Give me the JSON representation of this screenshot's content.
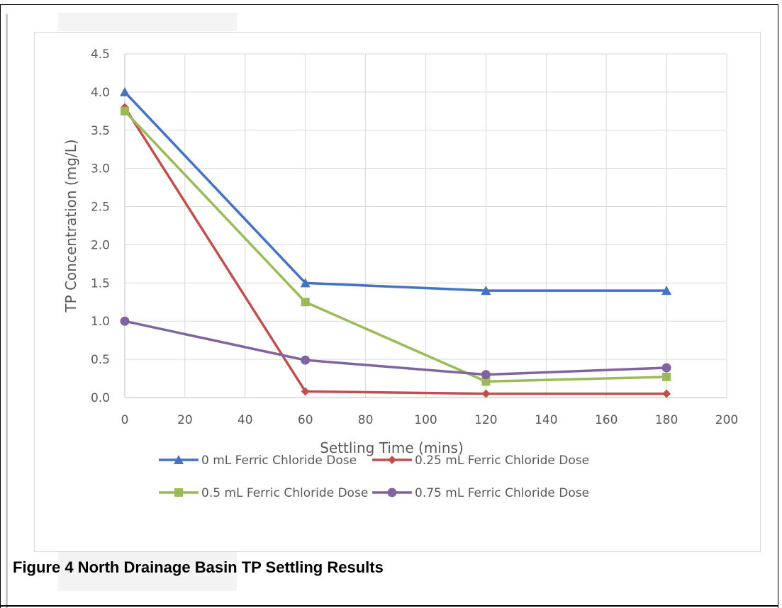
{
  "caption": "Figure 4  North Drainage Basin TP Settling Results",
  "chart_data": {
    "type": "line",
    "title": "",
    "xlabel": "Settling Time (mins)",
    "ylabel": "TP Concentration (mg/L)",
    "xlim": [
      0,
      200
    ],
    "ylim": [
      0,
      4.5
    ],
    "x_ticks": [
      "0",
      "20",
      "40",
      "60",
      "80",
      "100",
      "120",
      "140",
      "160",
      "180",
      "200"
    ],
    "y_ticks": [
      "0.0",
      "0.5",
      "1.0",
      "1.5",
      "2.0",
      "2.5",
      "3.0",
      "3.5",
      "4.0",
      "4.5"
    ],
    "grid": true,
    "legend_position": "bottom",
    "x": [
      0,
      60,
      120,
      180
    ],
    "series": [
      {
        "name": "0 mL Ferric Chloride Dose",
        "values": [
          4.0,
          1.5,
          1.4,
          1.4
        ],
        "color": "#4472c4",
        "marker": "triangle"
      },
      {
        "name": "0.25 mL Ferric Chloride Dose",
        "values": [
          3.8,
          0.08,
          0.05,
          0.05
        ],
        "color": "#c0504d",
        "marker": "diamond"
      },
      {
        "name": "0.5 mL Ferric Chloride Dose",
        "values": [
          3.75,
          1.25,
          0.21,
          0.27
        ],
        "color": "#9bbb59",
        "marker": "square"
      },
      {
        "name": "0.75 mL Ferric Chloride Dose",
        "values": [
          1.0,
          0.49,
          0.3,
          0.39
        ],
        "color": "#8064a2",
        "marker": "circle"
      }
    ]
  }
}
